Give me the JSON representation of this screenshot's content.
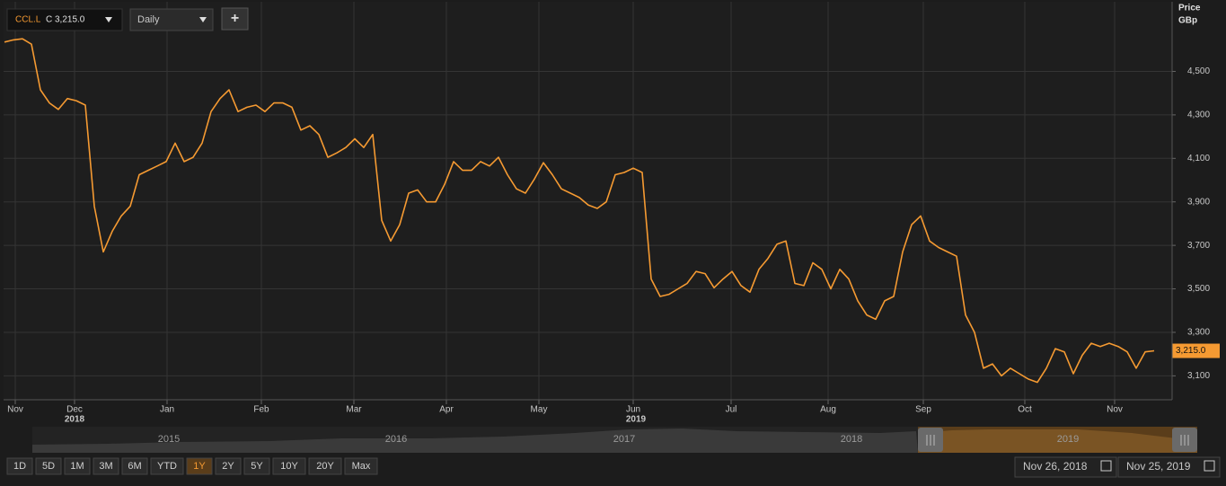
{
  "toolbar": {
    "symbol": "CCL.L",
    "close": "C 3,215.0",
    "interval": "Daily",
    "add": "+"
  },
  "chart_data": {
    "type": "line",
    "axis_title": "Price",
    "axis_unit": "GBp",
    "series": [
      {
        "name": "CCL.L",
        "color": "#f59a32",
        "values": [
          4635,
          4645,
          4650,
          4625,
          4415,
          4355,
          4325,
          4375,
          4365,
          4345,
          3880,
          3670,
          3765,
          3835,
          3880,
          4025,
          4045,
          4065,
          4085,
          4170,
          4085,
          4105,
          4170,
          4315,
          4375,
          4415,
          4315,
          4335,
          4345,
          4315,
          4355,
          4355,
          4335,
          4230,
          4250,
          4210,
          4105,
          4125,
          4150,
          4190,
          4150,
          4210,
          3815,
          3720,
          3795,
          3940,
          3955,
          3900,
          3900,
          3980,
          4085,
          4045,
          4045,
          4085,
          4065,
          4105,
          4025,
          3960,
          3940,
          4005,
          4080,
          4025,
          3960,
          3940,
          3920,
          3885,
          3870,
          3900,
          4025,
          4035,
          4055,
          4035,
          3545,
          3465,
          3475,
          3500,
          3525,
          3580,
          3570,
          3505,
          3545,
          3580,
          3515,
          3485,
          3590,
          3640,
          3705,
          3720,
          3525,
          3515,
          3620,
          3590,
          3500,
          3590,
          3545,
          3445,
          3380,
          3360,
          3445,
          3465,
          3670,
          3795,
          3835,
          3720,
          3690,
          3670,
          3650,
          3380,
          3300,
          3135,
          3155,
          3100,
          3135,
          3110,
          3085,
          3070,
          3135,
          3225,
          3210,
          3110,
          3195,
          3250,
          3235,
          3250,
          3235,
          3210,
          3135,
          3210,
          3215
        ]
      }
    ],
    "last_value_label": "3,215.0",
    "xlim": [
      -0.1,
      130
    ],
    "xticks": [
      {
        "value": 1.2,
        "label": "Nov"
      },
      {
        "value": 7.8,
        "label": "Dec"
      },
      {
        "value": 18.1,
        "label": "Jan"
      },
      {
        "value": 28.6,
        "label": "Feb"
      },
      {
        "value": 38.9,
        "label": "Mar"
      },
      {
        "value": 49.2,
        "label": "Apr"
      },
      {
        "value": 59.5,
        "label": "May"
      },
      {
        "value": 70,
        "label": "Jun"
      },
      {
        "value": 80.9,
        "label": "Jul"
      },
      {
        "value": 91.7,
        "label": "Aug"
      },
      {
        "value": 102.3,
        "label": "Sep"
      },
      {
        "value": 113.6,
        "label": "Oct"
      },
      {
        "value": 123.6,
        "label": "Nov"
      }
    ],
    "xtick_years": [
      {
        "value": 7.8,
        "label": "2018"
      },
      {
        "value": 70.3,
        "label": "2019"
      }
    ],
    "ylim": [
      2990,
      4820
    ],
    "yticks": [
      {
        "value": 3100,
        "label": "3,100"
      },
      {
        "value": 3300,
        "label": "3,300"
      },
      {
        "value": 3500,
        "label": "3,500"
      },
      {
        "value": 3700,
        "label": "3,700"
      },
      {
        "value": 3900,
        "label": "3,900"
      },
      {
        "value": 4100,
        "label": "4,100"
      },
      {
        "value": 4300,
        "label": "4,300"
      },
      {
        "value": 4500,
        "label": "4,500"
      }
    ],
    "grid": true
  },
  "navigator": {
    "years": [
      "2015",
      "2016",
      "2017",
      "2018",
      "2019"
    ]
  },
  "range_buttons": [
    "1D",
    "5D",
    "1M",
    "3M",
    "6M",
    "YTD",
    "1Y",
    "2Y",
    "5Y",
    "10Y",
    "20Y",
    "Max"
  ],
  "selected_range": "1Y",
  "date_from": "Nov 26, 2018",
  "date_to": "Nov 25, 2019"
}
